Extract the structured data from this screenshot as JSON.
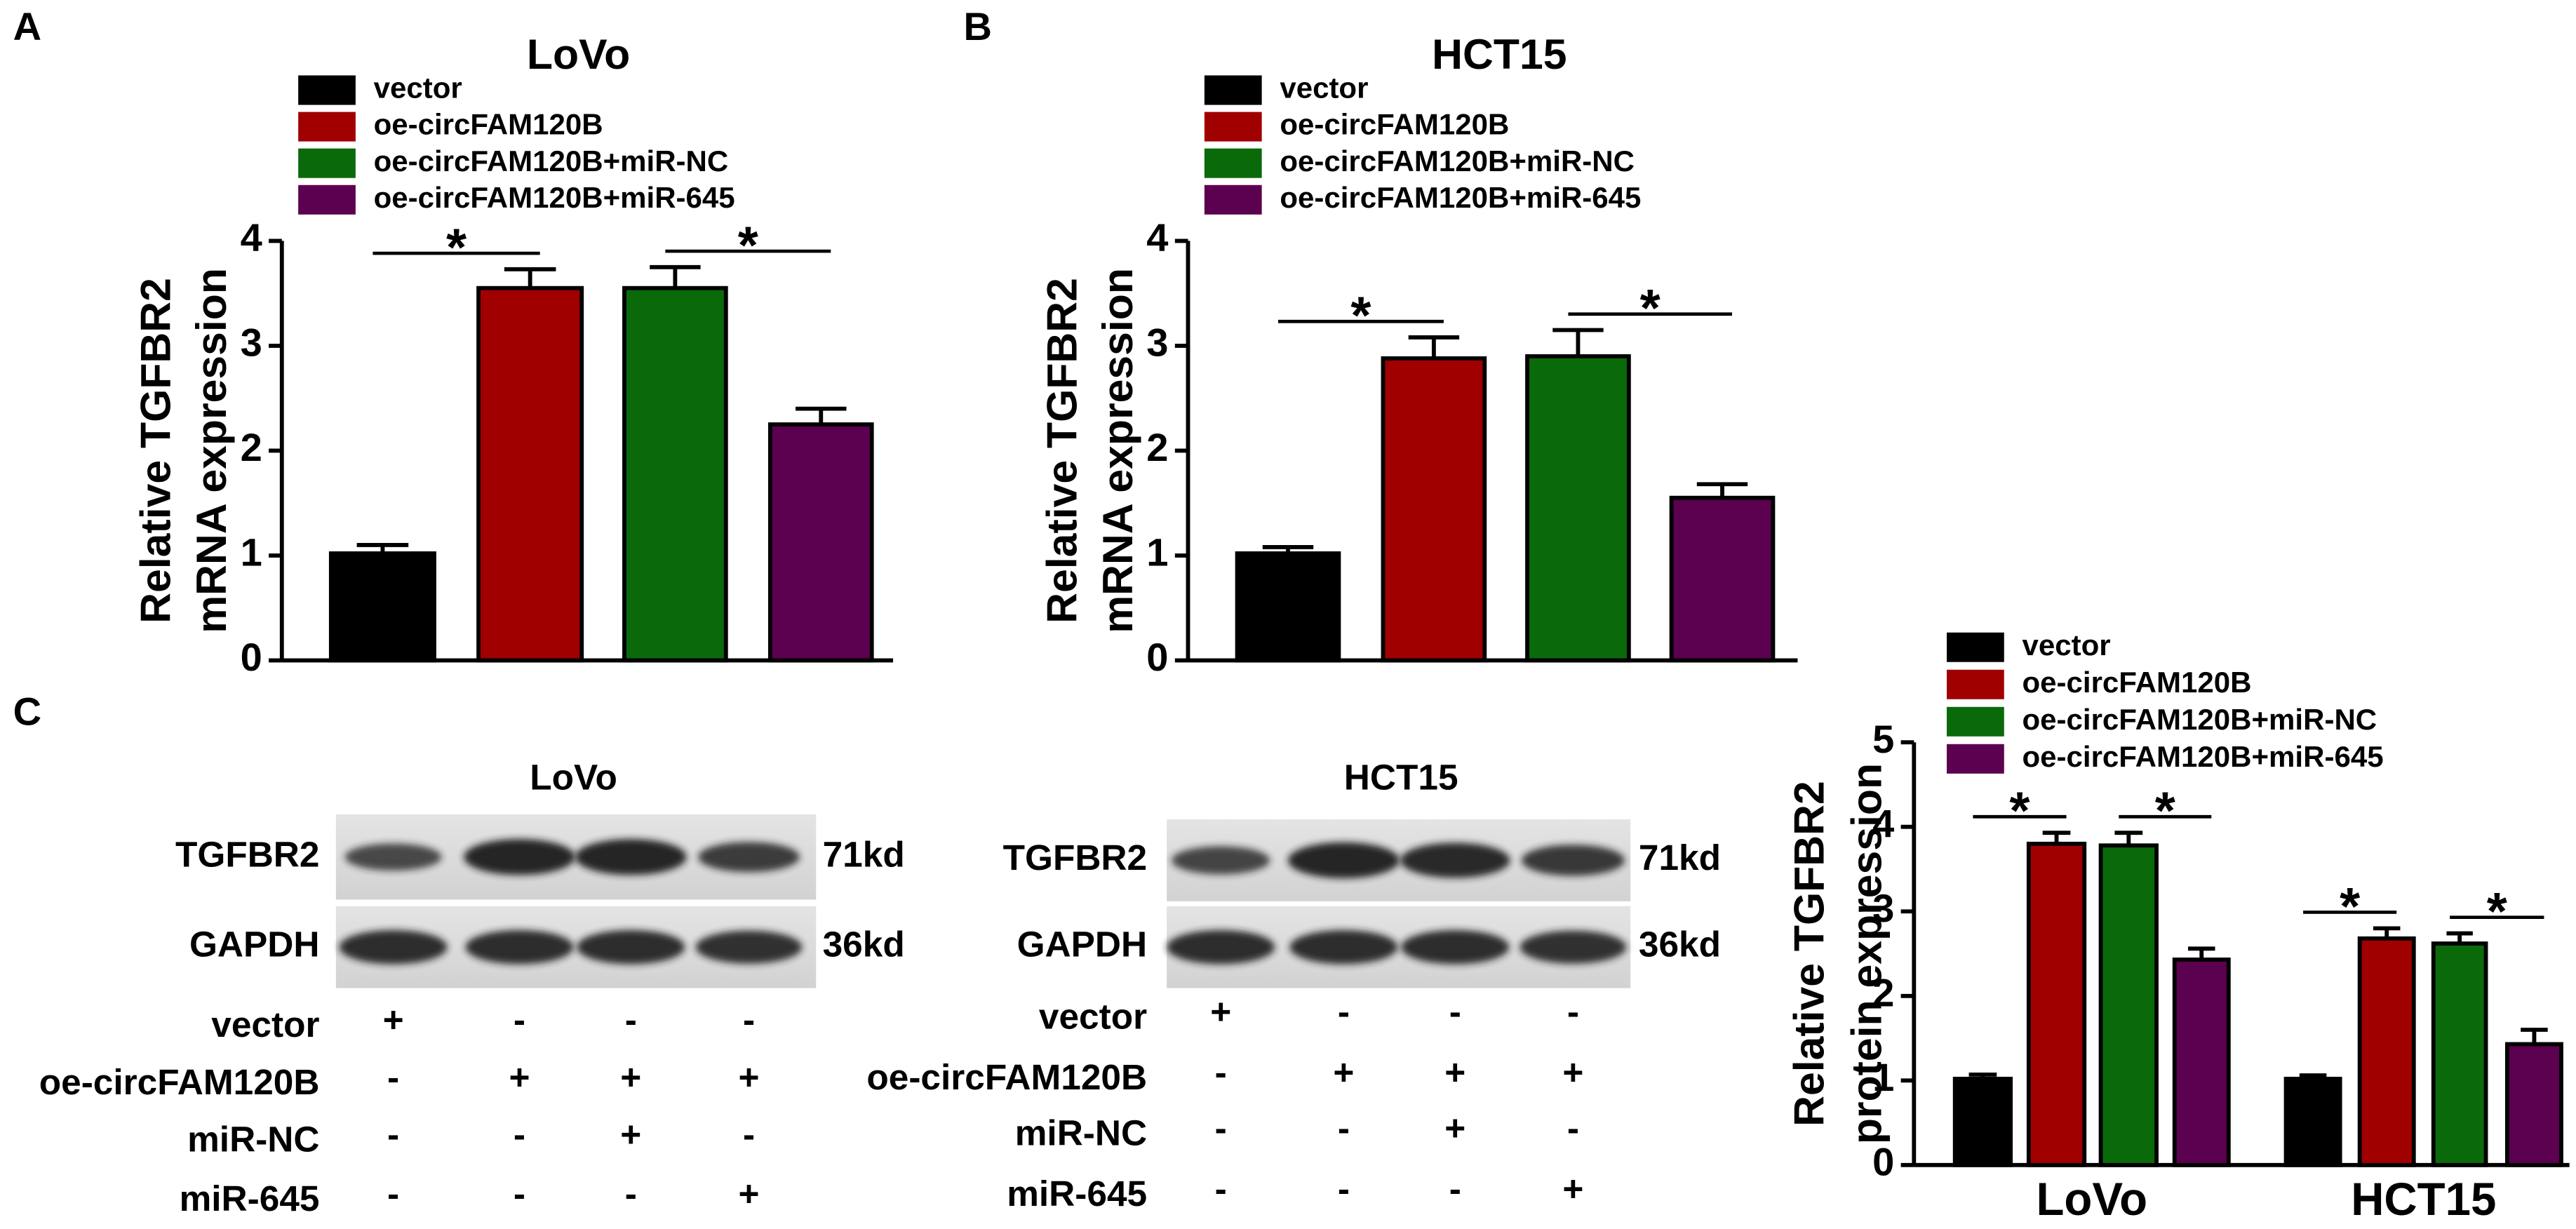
{
  "panels": [
    "A",
    "B",
    "C"
  ],
  "chart_data": [
    {
      "type": "bar",
      "title": "LoVo",
      "y_label": [
        "Relative TGFBR2",
        "mRNA expression"
      ],
      "categories": [
        null
      ],
      "series": [
        {
          "name": "vector",
          "color": "#000000",
          "values": [
            1.02
          ],
          "errors": [
            0.08
          ]
        },
        {
          "name": "oe-circFAM120B",
          "color": "#a00000",
          "values": [
            3.55
          ],
          "errors": [
            0.18
          ]
        },
        {
          "name": "oe-circFAM120B+miR-NC",
          "color": "#0a6a0a",
          "values": [
            3.55
          ],
          "errors": [
            0.2
          ]
        },
        {
          "name": "oe-circFAM120B+miR-645",
          "color": "#5c0050",
          "values": [
            2.25
          ],
          "errors": [
            0.15
          ]
        }
      ],
      "annotations": [
        "*",
        "*"
      ],
      "ylim": [
        0,
        4
      ],
      "yticks": [
        0,
        1,
        2,
        3,
        4
      ]
    },
    {
      "type": "bar",
      "title": "HCT15",
      "y_label": [
        "Relative TGFBR2",
        "mRNA expression"
      ],
      "categories": [
        null
      ],
      "series": [
        {
          "name": "vector",
          "color": "#000000",
          "values": [
            1.02
          ],
          "errors": [
            0.06
          ]
        },
        {
          "name": "oe-circFAM120B",
          "color": "#a00000",
          "values": [
            2.88
          ],
          "errors": [
            0.2
          ]
        },
        {
          "name": "oe-circFAM120B+miR-NC",
          "color": "#0a6a0a",
          "values": [
            2.9
          ],
          "errors": [
            0.25
          ]
        },
        {
          "name": "oe-circFAM120B+miR-645",
          "color": "#5c0050",
          "values": [
            1.55
          ],
          "errors": [
            0.13
          ]
        }
      ],
      "annotations": [
        "*",
        "*"
      ],
      "ylim": [
        0,
        4
      ],
      "yticks": [
        0,
        1,
        2,
        3,
        4
      ]
    },
    {
      "type": "bar",
      "y_label": [
        "Relative TGFBR2",
        "protein expression"
      ],
      "categories": [
        "LoVo",
        "HCT15"
      ],
      "series": [
        {
          "name": "vector",
          "color": "#000000",
          "values": [
            1.02,
            1.02
          ],
          "errors": [
            0.05,
            0.04
          ]
        },
        {
          "name": "oe-circFAM120B",
          "color": "#a00000",
          "values": [
            3.8,
            2.68
          ],
          "errors": [
            0.13,
            0.12
          ]
        },
        {
          "name": "oe-circFAM120B+miR-NC",
          "color": "#0a6a0a",
          "values": [
            3.78,
            2.62
          ],
          "errors": [
            0.15,
            0.12
          ]
        },
        {
          "name": "oe-circFAM120B+miR-645",
          "color": "#5c0050",
          "values": [
            2.43,
            1.43
          ],
          "errors": [
            0.13,
            0.17
          ]
        }
      ],
      "annotations": [
        "*",
        "*",
        "*",
        "*"
      ],
      "ylim": [
        0,
        5
      ],
      "yticks": [
        0,
        1,
        2,
        3,
        4,
        5
      ]
    }
  ],
  "blots": [
    {
      "title": "LoVo",
      "proteins": [
        {
          "name": "TGFBR2",
          "size": "71kd"
        },
        {
          "name": "GAPDH",
          "size": "36kd"
        }
      ],
      "rows": [
        {
          "label": "vector",
          "signs": [
            "+",
            "-",
            "-",
            "-"
          ]
        },
        {
          "label": "oe-circFAM120B",
          "signs": [
            "-",
            "+",
            "+",
            "+"
          ]
        },
        {
          "label": "miR-NC",
          "signs": [
            "-",
            "-",
            "+",
            "-"
          ]
        },
        {
          "label": "miR-645",
          "signs": [
            "-",
            "-",
            "-",
            "+"
          ]
        }
      ]
    },
    {
      "title": "HCT15",
      "proteins": [
        {
          "name": "TGFBR2",
          "size": "71kd"
        },
        {
          "name": "GAPDH",
          "size": "36kd"
        }
      ],
      "rows": [
        {
          "label": "vector",
          "signs": [
            "+",
            "-",
            "-",
            "-"
          ]
        },
        {
          "label": "oe-circFAM120B",
          "signs": [
            "-",
            "+",
            "+",
            "+"
          ]
        },
        {
          "label": "miR-NC",
          "signs": [
            "-",
            "-",
            "+",
            "-"
          ]
        },
        {
          "label": "miR-645",
          "signs": [
            "-",
            "-",
            "-",
            "+"
          ]
        }
      ]
    }
  ]
}
